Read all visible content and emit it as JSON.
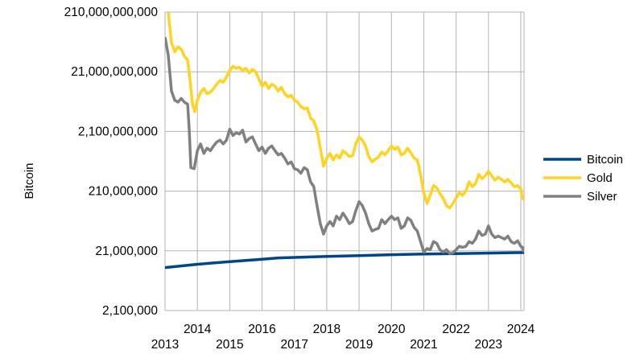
{
  "chart_data": {
    "type": "line",
    "title": "",
    "xlabel": "",
    "ylabel": "Bitcoin",
    "y_scale": "log",
    "ylim": [
      2100000,
      210000000000
    ],
    "xlim": [
      2013,
      2024.1
    ],
    "grid": true,
    "legend_position": "right",
    "y_ticks": [
      {
        "value": 210000000000,
        "label": "210,000,000,000"
      },
      {
        "value": 21000000000,
        "label": "21,000,000,000"
      },
      {
        "value": 2100000000,
        "label": "2,100,000,000"
      },
      {
        "value": 210000000,
        "label": "210,000,000"
      },
      {
        "value": 21000000,
        "label": "21,000,000"
      },
      {
        "value": 2100000,
        "label": "2,100,000"
      }
    ],
    "x_ticks": [
      {
        "value": 2013,
        "label": "2013"
      },
      {
        "value": 2014,
        "label": "2014"
      },
      {
        "value": 2015,
        "label": "2015"
      },
      {
        "value": 2016,
        "label": "2016"
      },
      {
        "value": 2017,
        "label": "2017"
      },
      {
        "value": 2018,
        "label": "2018"
      },
      {
        "value": 2019,
        "label": "2019"
      },
      {
        "value": 2020,
        "label": "2020"
      },
      {
        "value": 2021,
        "label": "2021"
      },
      {
        "value": 2022,
        "label": "2022"
      },
      {
        "value": 2023,
        "label": "2023"
      },
      {
        "value": 2024,
        "label": "2024"
      }
    ],
    "series": [
      {
        "name": "Bitcoin",
        "color": "#004586",
        "points": [
          [
            2013.0,
            11000000
          ],
          [
            2014.0,
            12500000
          ],
          [
            2015.0,
            13800000
          ],
          [
            2016.0,
            15200000
          ],
          [
            2016.5,
            16000000
          ],
          [
            2017.0,
            16300000
          ],
          [
            2018.0,
            16900000
          ],
          [
            2019.0,
            17500000
          ],
          [
            2020.0,
            18100000
          ],
          [
            2021.0,
            18600000
          ],
          [
            2022.0,
            18900000
          ],
          [
            2023.0,
            19250000
          ],
          [
            2024.0,
            19600000
          ],
          [
            2024.1,
            19650000
          ]
        ]
      },
      {
        "name": "Gold",
        "color": "#ffd320",
        "points": [
          [
            2013.1,
            210000000000
          ],
          [
            2013.2,
            65000000000
          ],
          [
            2013.3,
            45000000000
          ],
          [
            2013.4,
            55000000000
          ],
          [
            2013.5,
            50000000000
          ],
          [
            2013.6,
            38000000000
          ],
          [
            2013.7,
            33000000000
          ],
          [
            2013.75,
            20000000000
          ],
          [
            2013.85,
            6000000000
          ],
          [
            2013.92,
            4500000000
          ],
          [
            2014.0,
            7000000000
          ],
          [
            2014.1,
            9500000000
          ],
          [
            2014.2,
            11000000000
          ],
          [
            2014.3,
            9000000000
          ],
          [
            2014.4,
            9500000000
          ],
          [
            2014.5,
            11000000000
          ],
          [
            2014.6,
            13000000000
          ],
          [
            2014.7,
            15000000000
          ],
          [
            2014.8,
            14000000000
          ],
          [
            2014.9,
            17000000000
          ],
          [
            2015.0,
            22000000000
          ],
          [
            2015.1,
            26000000000
          ],
          [
            2015.2,
            24000000000
          ],
          [
            2015.3,
            25000000000
          ],
          [
            2015.4,
            22000000000
          ],
          [
            2015.5,
            24000000000
          ],
          [
            2015.6,
            20000000000
          ],
          [
            2015.7,
            23000000000
          ],
          [
            2015.8,
            21000000000
          ],
          [
            2015.9,
            16000000000
          ],
          [
            2016.0,
            12000000000
          ],
          [
            2016.1,
            14000000000
          ],
          [
            2016.2,
            11000000000
          ],
          [
            2016.3,
            13000000000
          ],
          [
            2016.4,
            12000000000
          ],
          [
            2016.5,
            10000000000
          ],
          [
            2016.6,
            11500000000
          ],
          [
            2016.7,
            9000000000
          ],
          [
            2016.8,
            8000000000
          ],
          [
            2016.9,
            8500000000
          ],
          [
            2017.0,
            7000000000
          ],
          [
            2017.1,
            6500000000
          ],
          [
            2017.2,
            5500000000
          ],
          [
            2017.3,
            5000000000
          ],
          [
            2017.4,
            5200000000
          ],
          [
            2017.5,
            3500000000
          ],
          [
            2017.6,
            3200000000
          ],
          [
            2017.7,
            2200000000
          ],
          [
            2017.8,
            1100000000
          ],
          [
            2017.9,
            550000000
          ],
          [
            2018.0,
            750000000
          ],
          [
            2018.1,
            900000000
          ],
          [
            2018.2,
            700000000
          ],
          [
            2018.3,
            850000000
          ],
          [
            2018.4,
            750000000
          ],
          [
            2018.5,
            1000000000
          ],
          [
            2018.6,
            900000000
          ],
          [
            2018.7,
            800000000
          ],
          [
            2018.8,
            820000000
          ],
          [
            2018.9,
            1300000000
          ],
          [
            2019.0,
            1700000000
          ],
          [
            2019.1,
            1500000000
          ],
          [
            2019.2,
            1200000000
          ],
          [
            2019.3,
            800000000
          ],
          [
            2019.4,
            650000000
          ],
          [
            2019.5,
            720000000
          ],
          [
            2019.6,
            780000000
          ],
          [
            2019.7,
            950000000
          ],
          [
            2019.8,
            850000000
          ],
          [
            2019.9,
            1000000000
          ],
          [
            2020.0,
            1200000000
          ],
          [
            2020.1,
            1050000000
          ],
          [
            2020.2,
            1150000000
          ],
          [
            2020.3,
            850000000
          ],
          [
            2020.4,
            900000000
          ],
          [
            2020.5,
            1100000000
          ],
          [
            2020.6,
            920000000
          ],
          [
            2020.7,
            750000000
          ],
          [
            2020.8,
            700000000
          ],
          [
            2020.9,
            400000000
          ],
          [
            2021.0,
            200000000
          ],
          [
            2021.1,
            130000000
          ],
          [
            2021.2,
            180000000
          ],
          [
            2021.3,
            260000000
          ],
          [
            2021.4,
            240000000
          ],
          [
            2021.5,
            190000000
          ],
          [
            2021.6,
            160000000
          ],
          [
            2021.7,
            120000000
          ],
          [
            2021.8,
            110000000
          ],
          [
            2021.9,
            130000000
          ],
          [
            2022.0,
            160000000
          ],
          [
            2022.1,
            200000000
          ],
          [
            2022.2,
            180000000
          ],
          [
            2022.3,
            210000000
          ],
          [
            2022.4,
            300000000
          ],
          [
            2022.5,
            250000000
          ],
          [
            2022.6,
            280000000
          ],
          [
            2022.7,
            400000000
          ],
          [
            2022.8,
            340000000
          ],
          [
            2022.9,
            380000000
          ],
          [
            2023.0,
            450000000
          ],
          [
            2023.1,
            380000000
          ],
          [
            2023.2,
            320000000
          ],
          [
            2023.3,
            360000000
          ],
          [
            2023.4,
            330000000
          ],
          [
            2023.5,
            300000000
          ],
          [
            2023.6,
            330000000
          ],
          [
            2023.7,
            290000000
          ],
          [
            2023.8,
            250000000
          ],
          [
            2023.9,
            260000000
          ],
          [
            2024.0,
            230000000
          ],
          [
            2024.05,
            160000000
          ],
          [
            2024.1,
            150000000
          ]
        ]
      },
      {
        "name": "Silver",
        "color": "#808080",
        "points": [
          [
            2013.0,
            80000000000
          ],
          [
            2013.1,
            40000000000
          ],
          [
            2013.2,
            10000000000
          ],
          [
            2013.3,
            7000000000
          ],
          [
            2013.4,
            6500000000
          ],
          [
            2013.5,
            7500000000
          ],
          [
            2013.6,
            6500000000
          ],
          [
            2013.7,
            6000000000
          ],
          [
            2013.75,
            2200000000
          ],
          [
            2013.8,
            520000000
          ],
          [
            2013.9,
            500000000
          ],
          [
            2014.0,
            1000000000
          ],
          [
            2014.1,
            1300000000
          ],
          [
            2014.2,
            900000000
          ],
          [
            2014.3,
            1100000000
          ],
          [
            2014.4,
            1000000000
          ],
          [
            2014.5,
            1200000000
          ],
          [
            2014.6,
            1400000000
          ],
          [
            2014.7,
            1500000000
          ],
          [
            2014.8,
            1300000000
          ],
          [
            2014.9,
            1500000000
          ],
          [
            2015.0,
            2300000000
          ],
          [
            2015.1,
            1800000000
          ],
          [
            2015.2,
            2000000000
          ],
          [
            2015.3,
            1900000000
          ],
          [
            2015.4,
            2200000000
          ],
          [
            2015.5,
            1400000000
          ],
          [
            2015.6,
            1600000000
          ],
          [
            2015.7,
            1700000000
          ],
          [
            2015.8,
            1300000000
          ],
          [
            2015.9,
            1000000000
          ],
          [
            2016.0,
            1150000000
          ],
          [
            2016.1,
            900000000
          ],
          [
            2016.2,
            1100000000
          ],
          [
            2016.3,
            1200000000
          ],
          [
            2016.4,
            1000000000
          ],
          [
            2016.5,
            850000000
          ],
          [
            2016.6,
            900000000
          ],
          [
            2016.7,
            750000000
          ],
          [
            2016.8,
            600000000
          ],
          [
            2016.9,
            650000000
          ],
          [
            2017.0,
            500000000
          ],
          [
            2017.1,
            480000000
          ],
          [
            2017.2,
            420000000
          ],
          [
            2017.3,
            520000000
          ],
          [
            2017.4,
            480000000
          ],
          [
            2017.5,
            300000000
          ],
          [
            2017.6,
            250000000
          ],
          [
            2017.7,
            120000000
          ],
          [
            2017.8,
            60000000
          ],
          [
            2017.9,
            40000000
          ],
          [
            2018.0,
            55000000
          ],
          [
            2018.1,
            65000000
          ],
          [
            2018.2,
            55000000
          ],
          [
            2018.3,
            80000000
          ],
          [
            2018.4,
            70000000
          ],
          [
            2018.5,
            90000000
          ],
          [
            2018.6,
            75000000
          ],
          [
            2018.7,
            60000000
          ],
          [
            2018.8,
            65000000
          ],
          [
            2018.9,
            100000000
          ],
          [
            2019.0,
            140000000
          ],
          [
            2019.1,
            120000000
          ],
          [
            2019.2,
            90000000
          ],
          [
            2019.3,
            60000000
          ],
          [
            2019.4,
            45000000
          ],
          [
            2019.5,
            48000000
          ],
          [
            2019.6,
            50000000
          ],
          [
            2019.7,
            70000000
          ],
          [
            2019.8,
            60000000
          ],
          [
            2019.9,
            70000000
          ],
          [
            2020.0,
            80000000
          ],
          [
            2020.1,
            70000000
          ],
          [
            2020.2,
            75000000
          ],
          [
            2020.3,
            50000000
          ],
          [
            2020.4,
            55000000
          ],
          [
            2020.5,
            75000000
          ],
          [
            2020.6,
            68000000
          ],
          [
            2020.7,
            52000000
          ],
          [
            2020.8,
            45000000
          ],
          [
            2020.9,
            30000000
          ],
          [
            2021.0,
            20000000
          ],
          [
            2021.1,
            23000000
          ],
          [
            2021.2,
            22000000
          ],
          [
            2021.3,
            30000000
          ],
          [
            2021.4,
            28000000
          ],
          [
            2021.5,
            22000000
          ],
          [
            2021.6,
            20000000
          ],
          [
            2021.7,
            22000000
          ],
          [
            2021.8,
            19000000
          ],
          [
            2021.9,
            19500000
          ],
          [
            2022.0,
            22000000
          ],
          [
            2022.1,
            25000000
          ],
          [
            2022.2,
            24000000
          ],
          [
            2022.3,
            25000000
          ],
          [
            2022.4,
            30000000
          ],
          [
            2022.5,
            28000000
          ],
          [
            2022.6,
            33000000
          ],
          [
            2022.7,
            45000000
          ],
          [
            2022.8,
            38000000
          ],
          [
            2022.9,
            40000000
          ],
          [
            2023.0,
            55000000
          ],
          [
            2023.1,
            40000000
          ],
          [
            2023.2,
            35000000
          ],
          [
            2023.3,
            37000000
          ],
          [
            2023.4,
            35000000
          ],
          [
            2023.5,
            33000000
          ],
          [
            2023.6,
            37000000
          ],
          [
            2023.7,
            30000000
          ],
          [
            2023.8,
            28000000
          ],
          [
            2023.9,
            31000000
          ],
          [
            2024.0,
            25000000
          ],
          [
            2024.05,
            24000000
          ],
          [
            2024.1,
            20000000
          ]
        ]
      }
    ]
  }
}
